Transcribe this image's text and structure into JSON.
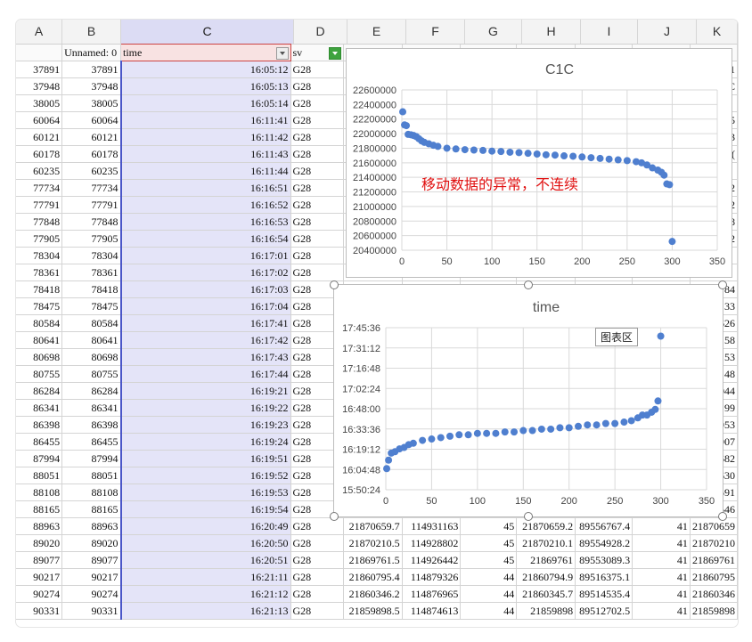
{
  "columns": [
    "A",
    "B",
    "C",
    "D",
    "E",
    "F",
    "G",
    "H",
    "I",
    "J",
    "K"
  ],
  "header_row": {
    "a": "",
    "b": "Unnamed: 0",
    "c": "time",
    "d": "sv"
  },
  "rows": [
    {
      "a": "37891",
      "b": "37891",
      "c": "16:05:12",
      "d": "G28"
    },
    {
      "a": "37948",
      "b": "37948",
      "c": "16:05:13",
      "d": "G28"
    },
    {
      "a": "38005",
      "b": "38005",
      "c": "16:05:14",
      "d": "G28"
    },
    {
      "a": "60064",
      "b": "60064",
      "c": "16:11:41",
      "d": "G28"
    },
    {
      "a": "60121",
      "b": "60121",
      "c": "16:11:42",
      "d": "G28"
    },
    {
      "a": "60178",
      "b": "60178",
      "c": "16:11:43",
      "d": "G28"
    },
    {
      "a": "60235",
      "b": "60235",
      "c": "16:11:44",
      "d": "G28"
    },
    {
      "a": "77734",
      "b": "77734",
      "c": "16:16:51",
      "d": "G28"
    },
    {
      "a": "77791",
      "b": "77791",
      "c": "16:16:52",
      "d": "G28"
    },
    {
      "a": "77848",
      "b": "77848",
      "c": "16:16:53",
      "d": "G28"
    },
    {
      "a": "77905",
      "b": "77905",
      "c": "16:16:54",
      "d": "G28"
    },
    {
      "a": "78304",
      "b": "78304",
      "c": "16:17:01",
      "d": "G28"
    },
    {
      "a": "78361",
      "b": "78361",
      "c": "16:17:02",
      "d": "G28"
    },
    {
      "a": "78418",
      "b": "78418",
      "c": "16:17:03",
      "d": "G28"
    },
    {
      "a": "78475",
      "b": "78475",
      "c": "16:17:04",
      "d": "G28"
    },
    {
      "a": "80584",
      "b": "80584",
      "c": "16:17:41",
      "d": "G28"
    },
    {
      "a": "80641",
      "b": "80641",
      "c": "16:17:42",
      "d": "G28"
    },
    {
      "a": "80698",
      "b": "80698",
      "c": "16:17:43",
      "d": "G28"
    },
    {
      "a": "80755",
      "b": "80755",
      "c": "16:17:44",
      "d": "G28"
    },
    {
      "a": "86284",
      "b": "86284",
      "c": "16:19:21",
      "d": "G28"
    },
    {
      "a": "86341",
      "b": "86341",
      "c": "16:19:22",
      "d": "G28"
    },
    {
      "a": "86398",
      "b": "86398",
      "c": "16:19:23",
      "d": "G28"
    },
    {
      "a": "86455",
      "b": "86455",
      "c": "16:19:24",
      "d": "G28"
    },
    {
      "a": "87994",
      "b": "87994",
      "c": "16:19:51",
      "d": "G28"
    },
    {
      "a": "88051",
      "b": "88051",
      "c": "16:19:52",
      "d": "G28"
    },
    {
      "a": "88108",
      "b": "88108",
      "c": "16:19:53",
      "d": "G28"
    },
    {
      "a": "88165",
      "b": "88165",
      "c": "16:19:54",
      "d": "G28"
    },
    {
      "a": "88963",
      "b": "88963",
      "c": "16:20:49",
      "d": "G28",
      "e": "21870659.7",
      "f": "114931163",
      "g": "45",
      "h": "21870659.2",
      "i": "89556767.4",
      "j": "41",
      "k": "21870659"
    },
    {
      "a": "89020",
      "b": "89020",
      "c": "16:20:50",
      "d": "G28",
      "e": "21870210.5",
      "f": "114928802",
      "g": "45",
      "h": "21870210.1",
      "i": "89554928.2",
      "j": "41",
      "k": "21870210"
    },
    {
      "a": "89077",
      "b": "89077",
      "c": "16:20:51",
      "d": "G28",
      "e": "21869761.5",
      "f": "114926442",
      "g": "45",
      "h": "21869761",
      "i": "89553089.3",
      "j": "41",
      "k": "21869761"
    },
    {
      "a": "90217",
      "b": "90217",
      "c": "16:21:11",
      "d": "G28",
      "e": "21860795.4",
      "f": "114879326",
      "g": "44",
      "h": "21860794.9",
      "i": "89516375.1",
      "j": "41",
      "k": "21860795"
    },
    {
      "a": "90274",
      "b": "90274",
      "c": "16:21:12",
      "d": "G28",
      "e": "21860346.2",
      "f": "114876965",
      "g": "44",
      "h": "21860345.7",
      "i": "89514535.4",
      "j": "41",
      "k": "21860346"
    },
    {
      "a": "90331",
      "b": "90331",
      "c": "16:21:13",
      "d": "G28",
      "e": "21859898.5",
      "f": "114874613",
      "g": "44",
      "h": "21859898",
      "i": "89512702.5",
      "j": "41",
      "k": "21859898"
    }
  ],
  "right_edge_partial": [
    "1",
    "C",
    "",
    "5",
    "3",
    "(",
    "",
    "2",
    "2",
    "8",
    "2",
    "",
    "",
    "84",
    "33",
    "626",
    "58",
    "53",
    "48",
    "044",
    "99",
    "953",
    "907",
    "682",
    "630",
    "591",
    "546"
  ],
  "chart_data": [
    {
      "type": "scatter",
      "title": "C1C",
      "annotation": "移动数据的异常，不连续",
      "annotation_color": "#e01010",
      "marker_color": "#4f7fcf",
      "xlim": [
        0,
        350
      ],
      "ylim": [
        20400000,
        22600000
      ],
      "x_ticks": [
        "0",
        "50",
        "100",
        "150",
        "200",
        "250",
        "300",
        "350"
      ],
      "y_ticks": [
        "20400000",
        "20600000",
        "20800000",
        "21000000",
        "21200000",
        "21400000",
        "21600000",
        "21800000",
        "22000000",
        "22200000",
        "22400000",
        "22600000"
      ],
      "points": [
        [
          1,
          22300000
        ],
        [
          3,
          22120000
        ],
        [
          5,
          22110000
        ],
        [
          7,
          21990000
        ],
        [
          10,
          21985000
        ],
        [
          13,
          21975000
        ],
        [
          16,
          21960000
        ],
        [
          19,
          21930000
        ],
        [
          22,
          21900000
        ],
        [
          25,
          21880000
        ],
        [
          30,
          21860000
        ],
        [
          35,
          21840000
        ],
        [
          40,
          21825000
        ],
        [
          50,
          21800000
        ],
        [
          60,
          21790000
        ],
        [
          70,
          21780000
        ],
        [
          80,
          21775000
        ],
        [
          90,
          21770000
        ],
        [
          100,
          21760000
        ],
        [
          110,
          21755000
        ],
        [
          120,
          21745000
        ],
        [
          130,
          21740000
        ],
        [
          140,
          21730000
        ],
        [
          150,
          21720000
        ],
        [
          160,
          21710000
        ],
        [
          170,
          21705000
        ],
        [
          180,
          21695000
        ],
        [
          190,
          21690000
        ],
        [
          200,
          21680000
        ],
        [
          210,
          21670000
        ],
        [
          220,
          21660000
        ],
        [
          230,
          21650000
        ],
        [
          240,
          21640000
        ],
        [
          250,
          21630000
        ],
        [
          260,
          21615000
        ],
        [
          266,
          21600000
        ],
        [
          272,
          21570000
        ],
        [
          278,
          21530000
        ],
        [
          284,
          21500000
        ],
        [
          288,
          21470000
        ],
        [
          291,
          21430000
        ],
        [
          294,
          21310000
        ],
        [
          297,
          21300000
        ],
        [
          300,
          20520000
        ]
      ]
    },
    {
      "type": "scatter",
      "title": "time",
      "marker_color": "#4f7fcf",
      "xlim": [
        0,
        350
      ],
      "ylim": [
        950,
        1065
      ],
      "x_ticks": [
        "0",
        "50",
        "100",
        "150",
        "200",
        "250",
        "300",
        "350"
      ],
      "y_ticks": [
        "15:50:24",
        "16:04:48",
        "16:19:12",
        "16:33:36",
        "16:48:00",
        "17:02:24",
        "17:16:48",
        "17:31:12",
        "17:45:36"
      ],
      "points": [
        [
          1,
          965
        ],
        [
          3,
          971
        ],
        [
          6,
          976
        ],
        [
          10,
          977
        ],
        [
          15,
          979
        ],
        [
          20,
          980
        ],
        [
          25,
          982
        ],
        [
          30,
          983
        ],
        [
          40,
          985
        ],
        [
          50,
          986
        ],
        [
          60,
          987
        ],
        [
          70,
          988
        ],
        [
          80,
          989
        ],
        [
          90,
          989
        ],
        [
          100,
          990
        ],
        [
          110,
          990
        ],
        [
          120,
          990
        ],
        [
          130,
          991
        ],
        [
          140,
          991
        ],
        [
          150,
          992
        ],
        [
          160,
          992
        ],
        [
          170,
          993
        ],
        [
          180,
          993
        ],
        [
          190,
          994
        ],
        [
          200,
          994
        ],
        [
          210,
          995
        ],
        [
          220,
          996
        ],
        [
          230,
          996
        ],
        [
          240,
          997
        ],
        [
          250,
          997
        ],
        [
          260,
          998
        ],
        [
          268,
          999
        ],
        [
          275,
          1001
        ],
        [
          280,
          1003
        ],
        [
          285,
          1003
        ],
        [
          290,
          1005
        ],
        [
          294,
          1007
        ],
        [
          297,
          1013
        ],
        [
          300,
          1059
        ]
      ],
      "tooltip": "图表区"
    }
  ]
}
